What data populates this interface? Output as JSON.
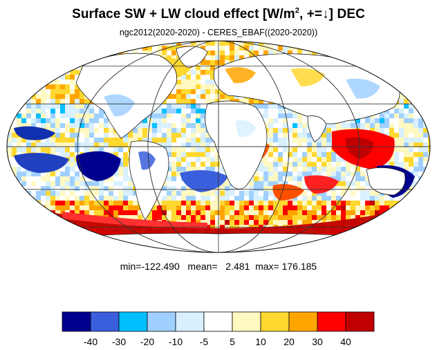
{
  "title": {
    "main": "Surface SW + LW cloud effect [W/m",
    "sup": "2",
    "after": ", +=↓]  DEC"
  },
  "subtitle": "ngc2012(2020-2020) - CERES_EBAF((2020-2020))",
  "stats": {
    "text": "min=-122.490   mean=   2.481  max= 176.185",
    "min": -122.49,
    "mean": 2.481,
    "max": 176.185
  },
  "colorbar": {
    "labels": [
      "-40",
      "-30",
      "-20",
      "-10",
      "-5",
      "5",
      "10",
      "20",
      "30",
      "40"
    ],
    "colors": [
      "#00008f",
      "#3a5fdc",
      "#00bfff",
      "#a0d0ff",
      "#d8f0ff",
      "#ffffff",
      "#fff8c0",
      "#ffd830",
      "#ffa500",
      "#ff0000",
      "#c00000"
    ]
  },
  "map": {
    "projection": "mollweide",
    "land_color": "#ffffff",
    "coastline_color": "#000000",
    "grid_color": "#333333"
  }
}
